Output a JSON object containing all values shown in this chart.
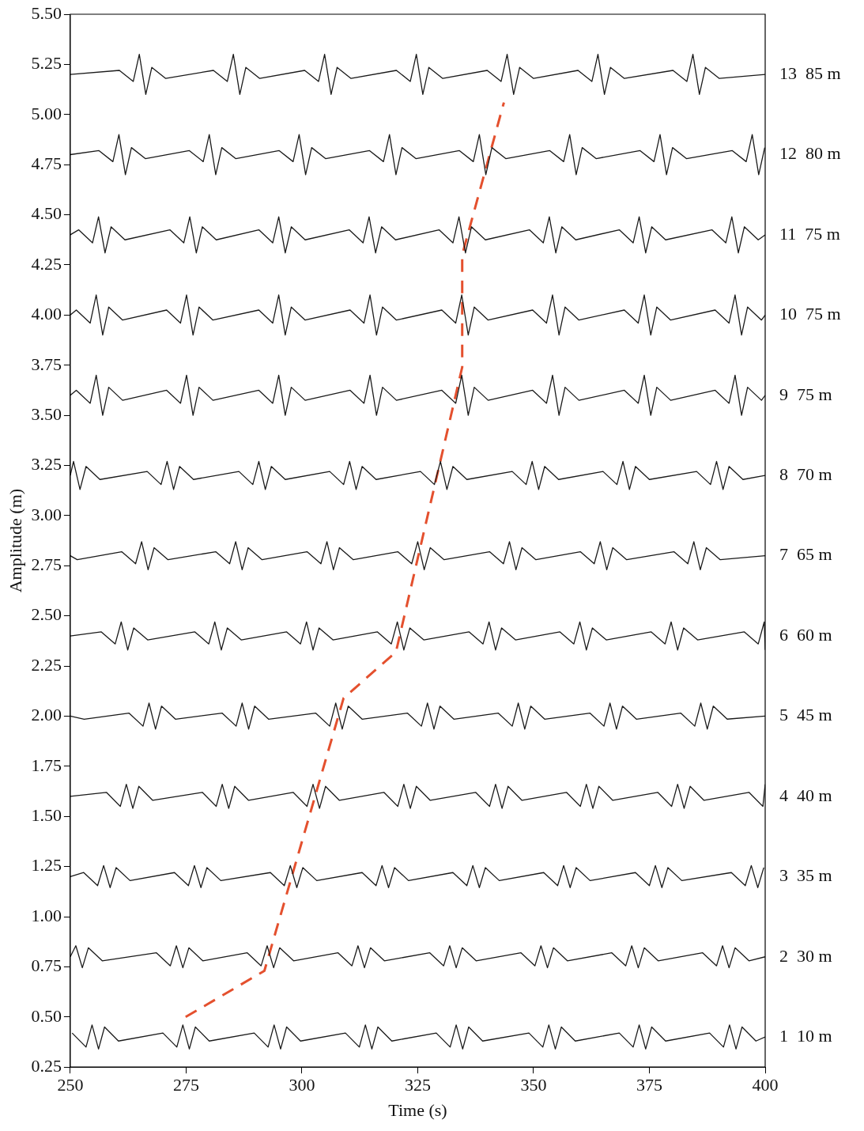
{
  "chart_data": {
    "type": "line",
    "xlabel": "Time (s)",
    "ylabel": "Amplitude (m)",
    "xlim": [
      250,
      400
    ],
    "xticks": [
      250,
      275,
      300,
      325,
      350,
      375,
      400
    ],
    "ylim": [
      0.25,
      5.5
    ],
    "yticks": [
      {
        "value": 0.25,
        "label": "0.25"
      },
      {
        "value": 0.5,
        "label": "0.50"
      },
      {
        "value": 0.75,
        "label": "0.75"
      },
      {
        "value": 1,
        "label": "1.00"
      },
      {
        "value": 1.25,
        "label": "1.25"
      },
      {
        "value": 1.5,
        "label": "1.50"
      },
      {
        "value": 1.75,
        "label": "1.75"
      },
      {
        "value": 2,
        "label": "2.00"
      },
      {
        "value": 2.25,
        "label": "2.25"
      },
      {
        "value": 2.5,
        "label": "2.50"
      },
      {
        "value": 2.75,
        "label": "2.75"
      },
      {
        "value": 3,
        "label": "3.00"
      },
      {
        "value": 3.25,
        "label": "3.25"
      },
      {
        "value": 3.5,
        "label": "3.50"
      },
      {
        "value": 3.75,
        "label": "3.75"
      },
      {
        "value": 4,
        "label": "4.00"
      },
      {
        "value": 4.25,
        "label": "4.25"
      },
      {
        "value": 4.5,
        "label": "4.50"
      },
      {
        "value": 4.75,
        "label": "4.75"
      },
      {
        "value": 5,
        "label": "5.00"
      },
      {
        "value": 5.25,
        "label": "5.25"
      },
      {
        "value": 5.5,
        "label": "5.50"
      }
    ],
    "grid": false,
    "legend": false,
    "marker": "none",
    "line_style": "solid",
    "series": [
      {
        "name": "1  10 m",
        "color": "#1a1a1a",
        "x": [
          250.4,
          253.4,
          254.7,
          256.1,
          257.4,
          260.4,
          270,
          273,
          274.3,
          275.7,
          277,
          280,
          289.7,
          292.7,
          294,
          295.4,
          296.7,
          299.7,
          309.4,
          312.4,
          313.7,
          315.1,
          316.4,
          319.4,
          329,
          332,
          333.3,
          334.7,
          336,
          339,
          349,
          352,
          353.3,
          354.7,
          356,
          359,
          368.5,
          371.5,
          372.8,
          374.2,
          375.5,
          378.5,
          388,
          391,
          392.3,
          393.7,
          395,
          398,
          400
        ],
        "values": [
          0.42,
          0.35,
          0.46,
          0.34,
          0.45,
          0.38,
          0.42,
          0.35,
          0.46,
          0.34,
          0.45,
          0.38,
          0.42,
          0.35,
          0.46,
          0.34,
          0.45,
          0.38,
          0.42,
          0.35,
          0.46,
          0.34,
          0.45,
          0.38,
          0.42,
          0.35,
          0.46,
          0.34,
          0.45,
          0.38,
          0.42,
          0.35,
          0.46,
          0.34,
          0.45,
          0.38,
          0.42,
          0.35,
          0.46,
          0.34,
          0.45,
          0.38,
          0.42,
          0.35,
          0.46,
          0.34,
          0.45,
          0.38,
          0.4
        ]
      },
      {
        "name": "2  30 m",
        "color": "#1a1a1a",
        "x": [
          250,
          251.2,
          252.6,
          253.9,
          256.9,
          268.6,
          271.6,
          272.9,
          274.3,
          275.6,
          278.6,
          288.2,
          291.2,
          292.5,
          293.9,
          295.2,
          298.2,
          307.8,
          310.8,
          312.1,
          313.5,
          314.8,
          317.8,
          327.6,
          330.6,
          331.9,
          333.3,
          334.6,
          337.6,
          347.3,
          350.3,
          351.6,
          353,
          354.3,
          357.3,
          366.9,
          369.9,
          371.2,
          372.6,
          373.9,
          376.9,
          386.5,
          389.5,
          390.8,
          392.2,
          393.5,
          396.5,
          400
        ],
        "values": [
          0.8,
          0.855,
          0.745,
          0.845,
          0.78,
          0.82,
          0.755,
          0.855,
          0.745,
          0.845,
          0.78,
          0.82,
          0.755,
          0.855,
          0.745,
          0.845,
          0.78,
          0.82,
          0.755,
          0.855,
          0.745,
          0.845,
          0.78,
          0.82,
          0.755,
          0.855,
          0.745,
          0.845,
          0.78,
          0.82,
          0.755,
          0.855,
          0.745,
          0.845,
          0.78,
          0.82,
          0.755,
          0.855,
          0.745,
          0.845,
          0.78,
          0.82,
          0.755,
          0.855,
          0.745,
          0.845,
          0.78,
          0.8
        ]
      },
      {
        "name": "3  35 m",
        "color": "#1a1a1a",
        "x": [
          250,
          252.9,
          255.9,
          257.2,
          258.6,
          259.9,
          262.9,
          272.5,
          275.5,
          276.8,
          278.2,
          279.5,
          282.5,
          293.2,
          296.2,
          297.5,
          298.9,
          300.2,
          303.2,
          313,
          316,
          317.3,
          318.7,
          320,
          323,
          332.6,
          335.6,
          336.9,
          338.3,
          339.6,
          342.6,
          352.2,
          355.2,
          356.5,
          357.9,
          359.2,
          362.2,
          372,
          375,
          376.3,
          377.7,
          379,
          382,
          392.7,
          395.7,
          397,
          398.4,
          399.7
        ],
        "values": [
          1.2,
          1.22,
          1.155,
          1.255,
          1.145,
          1.245,
          1.18,
          1.22,
          1.155,
          1.255,
          1.145,
          1.245,
          1.18,
          1.22,
          1.155,
          1.255,
          1.145,
          1.245,
          1.18,
          1.22,
          1.155,
          1.255,
          1.145,
          1.245,
          1.18,
          1.22,
          1.155,
          1.255,
          1.145,
          1.245,
          1.18,
          1.22,
          1.155,
          1.255,
          1.145,
          1.245,
          1.18,
          1.22,
          1.155,
          1.255,
          1.145,
          1.245,
          1.18,
          1.22,
          1.155,
          1.255,
          1.145,
          1.245
        ]
      },
      {
        "name": "4  40 m",
        "color": "#1a1a1a",
        "x": [
          250,
          257.8,
          260.8,
          262.1,
          263.5,
          264.8,
          267.8,
          278.5,
          281.5,
          282.8,
          284.2,
          285.5,
          288.5,
          298.1,
          301.1,
          302.4,
          303.8,
          305.1,
          308.1,
          317.7,
          320.7,
          322,
          323.4,
          324.7,
          327.7,
          337.5,
          340.5,
          341.8,
          343.2,
          344.5,
          347.5,
          357.1,
          360.1,
          361.4,
          362.8,
          364.1,
          367.1,
          376.8,
          379.8,
          381.1,
          382.5,
          383.8,
          386.8,
          396.5,
          399.5,
          400
        ],
        "values": [
          1.6,
          1.62,
          1.55,
          1.66,
          1.54,
          1.65,
          1.58,
          1.62,
          1.55,
          1.66,
          1.54,
          1.65,
          1.58,
          1.62,
          1.55,
          1.66,
          1.54,
          1.65,
          1.58,
          1.62,
          1.55,
          1.66,
          1.54,
          1.65,
          1.58,
          1.62,
          1.55,
          1.66,
          1.54,
          1.65,
          1.58,
          1.62,
          1.55,
          1.66,
          1.54,
          1.65,
          1.58,
          1.62,
          1.55,
          1.66,
          1.54,
          1.65,
          1.58,
          1.62,
          1.55,
          1.66
        ]
      },
      {
        "name": "5  45 m",
        "color": "#1a1a1a",
        "x": [
          250,
          253,
          262.7,
          265.7,
          267,
          268.4,
          269.7,
          272.7,
          282.8,
          285.8,
          287.1,
          288.5,
          289.8,
          292.8,
          303,
          306,
          307.3,
          308.7,
          310,
          313,
          322.8,
          325.8,
          327.1,
          328.5,
          329.8,
          332.8,
          342.4,
          345.4,
          346.7,
          348.1,
          349.4,
          352.4,
          362.2,
          365.2,
          366.5,
          367.9,
          369.2,
          372.2,
          381.8,
          384.8,
          386.1,
          387.5,
          388.8,
          391.8,
          400
        ],
        "values": [
          2,
          1.985,
          2.015,
          1.95,
          2.065,
          1.935,
          2.05,
          1.985,
          2.015,
          1.95,
          2.065,
          1.935,
          2.05,
          1.985,
          2.015,
          1.95,
          2.065,
          1.935,
          2.05,
          1.985,
          2.015,
          1.95,
          2.065,
          1.935,
          2.05,
          1.985,
          2.015,
          1.95,
          2.065,
          1.935,
          2.05,
          1.985,
          2.015,
          1.95,
          2.065,
          1.935,
          2.05,
          1.985,
          2.015,
          1.95,
          2.065,
          1.935,
          2.05,
          1.985,
          2
        ]
      },
      {
        "name": "6  60 m",
        "color": "#1a1a1a",
        "x": [
          250,
          256.7,
          259.7,
          261,
          262.4,
          263.7,
          266.7,
          276.9,
          279.9,
          281.2,
          282.6,
          283.9,
          286.9,
          296.7,
          299.7,
          301,
          302.4,
          303.7,
          306.7,
          316.3,
          319.3,
          320.6,
          322,
          323.3,
          326.3,
          336.1,
          339.1,
          340.4,
          341.8,
          343.1,
          346.1,
          355.7,
          358.7,
          360,
          361.4,
          362.7,
          365.7,
          375.4,
          378.4,
          379.7,
          381.1,
          382.4,
          385.4,
          395.5,
          398.5,
          399.8,
          400
        ],
        "values": [
          2.4,
          2.42,
          2.36,
          2.47,
          2.33,
          2.44,
          2.38,
          2.42,
          2.36,
          2.47,
          2.33,
          2.44,
          2.38,
          2.42,
          2.36,
          2.47,
          2.33,
          2.44,
          2.38,
          2.42,
          2.36,
          2.47,
          2.33,
          2.44,
          2.38,
          2.42,
          2.36,
          2.47,
          2.33,
          2.44,
          2.38,
          2.42,
          2.36,
          2.47,
          2.33,
          2.44,
          2.38,
          2.42,
          2.36,
          2.47,
          2.33,
          2.44,
          2.38,
          2.42,
          2.36,
          2.47,
          2.33
        ]
      },
      {
        "name": "7  65 m",
        "color": "#1a1a1a",
        "x": [
          250,
          251.5,
          261.1,
          264.1,
          265.4,
          266.8,
          268.1,
          271.1,
          281.4,
          284.4,
          285.7,
          287.1,
          288.4,
          291.4,
          301.1,
          304.1,
          305.4,
          306.8,
          308.1,
          311.1,
          320.7,
          323.7,
          325,
          326.4,
          327.7,
          330.7,
          340.5,
          343.5,
          344.8,
          346.2,
          347.5,
          350.5,
          360.1,
          363.1,
          364.4,
          365.8,
          367.1,
          370.1,
          380.3,
          383.3,
          384.6,
          386,
          387.3,
          390.3,
          400
        ],
        "values": [
          2.8,
          2.78,
          2.82,
          2.76,
          2.87,
          2.73,
          2.84,
          2.78,
          2.82,
          2.76,
          2.87,
          2.73,
          2.84,
          2.78,
          2.82,
          2.76,
          2.87,
          2.73,
          2.84,
          2.78,
          2.82,
          2.76,
          2.87,
          2.73,
          2.84,
          2.78,
          2.82,
          2.76,
          2.87,
          2.73,
          2.84,
          2.78,
          2.82,
          2.76,
          2.87,
          2.73,
          2.84,
          2.78,
          2.82,
          2.76,
          2.87,
          2.73,
          2.84,
          2.78,
          2.8
        ]
      },
      {
        "name": "8  70 m",
        "color": "#1a1a1a",
        "x": [
          250,
          250.7,
          252.1,
          253.4,
          256.4,
          266.6,
          269.6,
          270.9,
          272.3,
          273.6,
          276.6,
          286.4,
          289.4,
          290.7,
          292.1,
          293.4,
          296.4,
          306,
          309,
          310.3,
          311.7,
          313,
          316,
          325.6,
          328.6,
          329.9,
          331.3,
          332.6,
          335.6,
          345.4,
          348.4,
          349.7,
          351.1,
          352.4,
          355.4,
          365,
          368,
          369.3,
          370.7,
          372,
          375,
          385.2,
          388.2,
          389.5,
          390.9,
          392.2,
          395.2,
          400
        ],
        "values": [
          3.2,
          3.27,
          3.13,
          3.245,
          3.18,
          3.22,
          3.155,
          3.27,
          3.13,
          3.245,
          3.18,
          3.22,
          3.155,
          3.27,
          3.13,
          3.245,
          3.18,
          3.22,
          3.155,
          3.27,
          3.13,
          3.245,
          3.18,
          3.22,
          3.155,
          3.27,
          3.13,
          3.245,
          3.18,
          3.22,
          3.155,
          3.27,
          3.13,
          3.245,
          3.18,
          3.22,
          3.155,
          3.27,
          3.13,
          3.245,
          3.18,
          3.22,
          3.155,
          3.27,
          3.13,
          3.245,
          3.18,
          3.2
        ]
      },
      {
        "name": "9  75 m",
        "color": "#1a1a1a",
        "x": [
          250,
          251.3,
          254.3,
          255.6,
          257,
          258.3,
          261.3,
          270.8,
          273.8,
          275.1,
          276.5,
          277.8,
          280.8,
          290.7,
          293.7,
          295,
          296.4,
          297.7,
          300.7,
          310.4,
          313.4,
          314.7,
          316.1,
          317.4,
          320.4,
          330.2,
          333.2,
          334.5,
          335.9,
          337.2,
          340.2,
          349.8,
          352.8,
          354.1,
          355.5,
          356.8,
          359.8,
          369.6,
          372.6,
          373.9,
          375.3,
          376.6,
          379.6,
          389.2,
          392.2,
          393.5,
          394.9,
          396.2,
          399.2,
          400
        ],
        "values": [
          3.6,
          3.625,
          3.56,
          3.7,
          3.5,
          3.64,
          3.575,
          3.625,
          3.56,
          3.7,
          3.5,
          3.64,
          3.575,
          3.625,
          3.56,
          3.7,
          3.5,
          3.64,
          3.575,
          3.625,
          3.56,
          3.7,
          3.5,
          3.64,
          3.575,
          3.625,
          3.56,
          3.7,
          3.5,
          3.64,
          3.575,
          3.625,
          3.56,
          3.7,
          3.5,
          3.64,
          3.575,
          3.625,
          3.56,
          3.7,
          3.5,
          3.64,
          3.575,
          3.625,
          3.56,
          3.7,
          3.5,
          3.64,
          3.575,
          3.6
        ]
      },
      {
        "name": "10  75 m",
        "color": "#1a1a1a",
        "x": [
          250,
          251.3,
          254.3,
          255.6,
          257,
          258.3,
          261.3,
          270.8,
          273.8,
          275.1,
          276.5,
          277.8,
          280.8,
          290.7,
          293.7,
          295,
          296.4,
          297.7,
          300.7,
          310.4,
          313.4,
          314.7,
          316.1,
          317.4,
          320.4,
          330.2,
          333.2,
          334.5,
          335.9,
          337.2,
          340.2,
          349.8,
          352.8,
          354.1,
          355.5,
          356.8,
          359.8,
          369.6,
          372.6,
          373.9,
          375.3,
          376.6,
          379.6,
          389.2,
          392.2,
          393.5,
          394.9,
          396.2,
          399.2,
          400
        ],
        "values": [
          4,
          4.025,
          3.96,
          4.1,
          3.9,
          4.04,
          3.975,
          4.025,
          3.96,
          4.1,
          3.9,
          4.04,
          3.975,
          4.025,
          3.96,
          4.1,
          3.9,
          4.04,
          3.975,
          4.025,
          3.96,
          4.1,
          3.9,
          4.04,
          3.975,
          4.025,
          3.96,
          4.1,
          3.9,
          4.04,
          3.975,
          4.025,
          3.96,
          4.1,
          3.9,
          4.04,
          3.975,
          4.025,
          3.96,
          4.1,
          3.9,
          4.04,
          3.975,
          4.025,
          3.96,
          4.1,
          3.9,
          4.04,
          3.975,
          4
        ]
      },
      {
        "name": "11  75 m",
        "color": "#1a1a1a",
        "x": [
          250,
          251.8,
          254.8,
          256.1,
          257.5,
          258.8,
          261.8,
          271.5,
          274.5,
          275.8,
          277.2,
          278.5,
          281.5,
          290.7,
          293.7,
          295,
          296.4,
          297.7,
          300.7,
          310.2,
          313.2,
          314.5,
          315.9,
          317.2,
          320.2,
          329.6,
          332.6,
          333.9,
          335.3,
          336.6,
          339.6,
          349.1,
          352.1,
          353.4,
          354.8,
          356.1,
          359.1,
          368.5,
          371.5,
          372.8,
          374.2,
          375.5,
          378.5,
          388.5,
          391.5,
          392.8,
          394.2,
          395.5,
          398.5,
          400
        ],
        "values": [
          4.4,
          4.425,
          4.36,
          4.49,
          4.31,
          4.44,
          4.375,
          4.425,
          4.36,
          4.49,
          4.31,
          4.44,
          4.375,
          4.425,
          4.36,
          4.49,
          4.31,
          4.44,
          4.375,
          4.425,
          4.36,
          4.49,
          4.31,
          4.44,
          4.375,
          4.425,
          4.36,
          4.49,
          4.31,
          4.44,
          4.375,
          4.425,
          4.36,
          4.49,
          4.31,
          4.44,
          4.375,
          4.425,
          4.36,
          4.49,
          4.31,
          4.44,
          4.375,
          4.425,
          4.36,
          4.49,
          4.31,
          4.44,
          4.375,
          4.4
        ]
      },
      {
        "name": "12  80 m",
        "color": "#1a1a1a",
        "x": [
          250,
          256.2,
          259.2,
          260.5,
          261.9,
          263.2,
          266.2,
          275.7,
          278.7,
          280,
          281.4,
          282.7,
          285.7,
          295.1,
          298.1,
          299.4,
          300.8,
          302.1,
          305.1,
          314.6,
          317.6,
          318.9,
          320.3,
          321.6,
          324.6,
          334,
          337,
          338.3,
          339.7,
          341,
          344,
          353.5,
          356.5,
          357.8,
          359.2,
          360.5,
          363.5,
          373,
          376,
          377.3,
          378.7,
          380,
          383,
          392.9,
          395.9,
          397.2,
          398.6,
          399.9
        ],
        "values": [
          4.8,
          4.82,
          4.765,
          4.9,
          4.7,
          4.835,
          4.78,
          4.82,
          4.765,
          4.9,
          4.7,
          4.835,
          4.78,
          4.82,
          4.765,
          4.9,
          4.7,
          4.835,
          4.78,
          4.82,
          4.765,
          4.9,
          4.7,
          4.835,
          4.78,
          4.82,
          4.765,
          4.9,
          4.7,
          4.835,
          4.78,
          4.82,
          4.765,
          4.9,
          4.7,
          4.835,
          4.78,
          4.82,
          4.765,
          4.9,
          4.7,
          4.835,
          4.78,
          4.82,
          4.765,
          4.9,
          4.7,
          4.835
        ]
      },
      {
        "name": "13  85 m",
        "color": "#1a1a1a",
        "x": [
          250,
          260.6,
          263.6,
          264.9,
          266.3,
          267.6,
          270.6,
          280.9,
          283.9,
          285.2,
          286.6,
          287.9,
          290.9,
          300.6,
          303.6,
          304.9,
          306.3,
          307.6,
          310.6,
          320.4,
          323.4,
          324.7,
          326.1,
          327.4,
          330.4,
          340,
          343,
          344.3,
          345.7,
          347,
          350,
          359.6,
          362.6,
          363.9,
          365.3,
          366.6,
          369.6,
          380.1,
          383.1,
          384.4,
          385.8,
          387.1,
          390.1,
          400
        ],
        "values": [
          5.2,
          5.22,
          5.165,
          5.3,
          5.1,
          5.235,
          5.18,
          5.22,
          5.165,
          5.3,
          5.1,
          5.235,
          5.18,
          5.22,
          5.165,
          5.3,
          5.1,
          5.235,
          5.18,
          5.22,
          5.165,
          5.3,
          5.1,
          5.235,
          5.18,
          5.22,
          5.165,
          5.3,
          5.1,
          5.235,
          5.18,
          5.22,
          5.165,
          5.3,
          5.1,
          5.235,
          5.18,
          5.22,
          5.165,
          5.3,
          5.1,
          5.235,
          5.18,
          5.2
        ]
      },
      {
        "color": "#e4502e",
        "line_style": "dashed",
        "x": [
          274.9,
          291.9,
          309,
          320.3,
          334.6,
          334.6,
          343.6
        ],
        "values": [
          0.5,
          0.73,
          2.09,
          2.32,
          3.74,
          4.3,
          5.06
        ]
      }
    ]
  }
}
